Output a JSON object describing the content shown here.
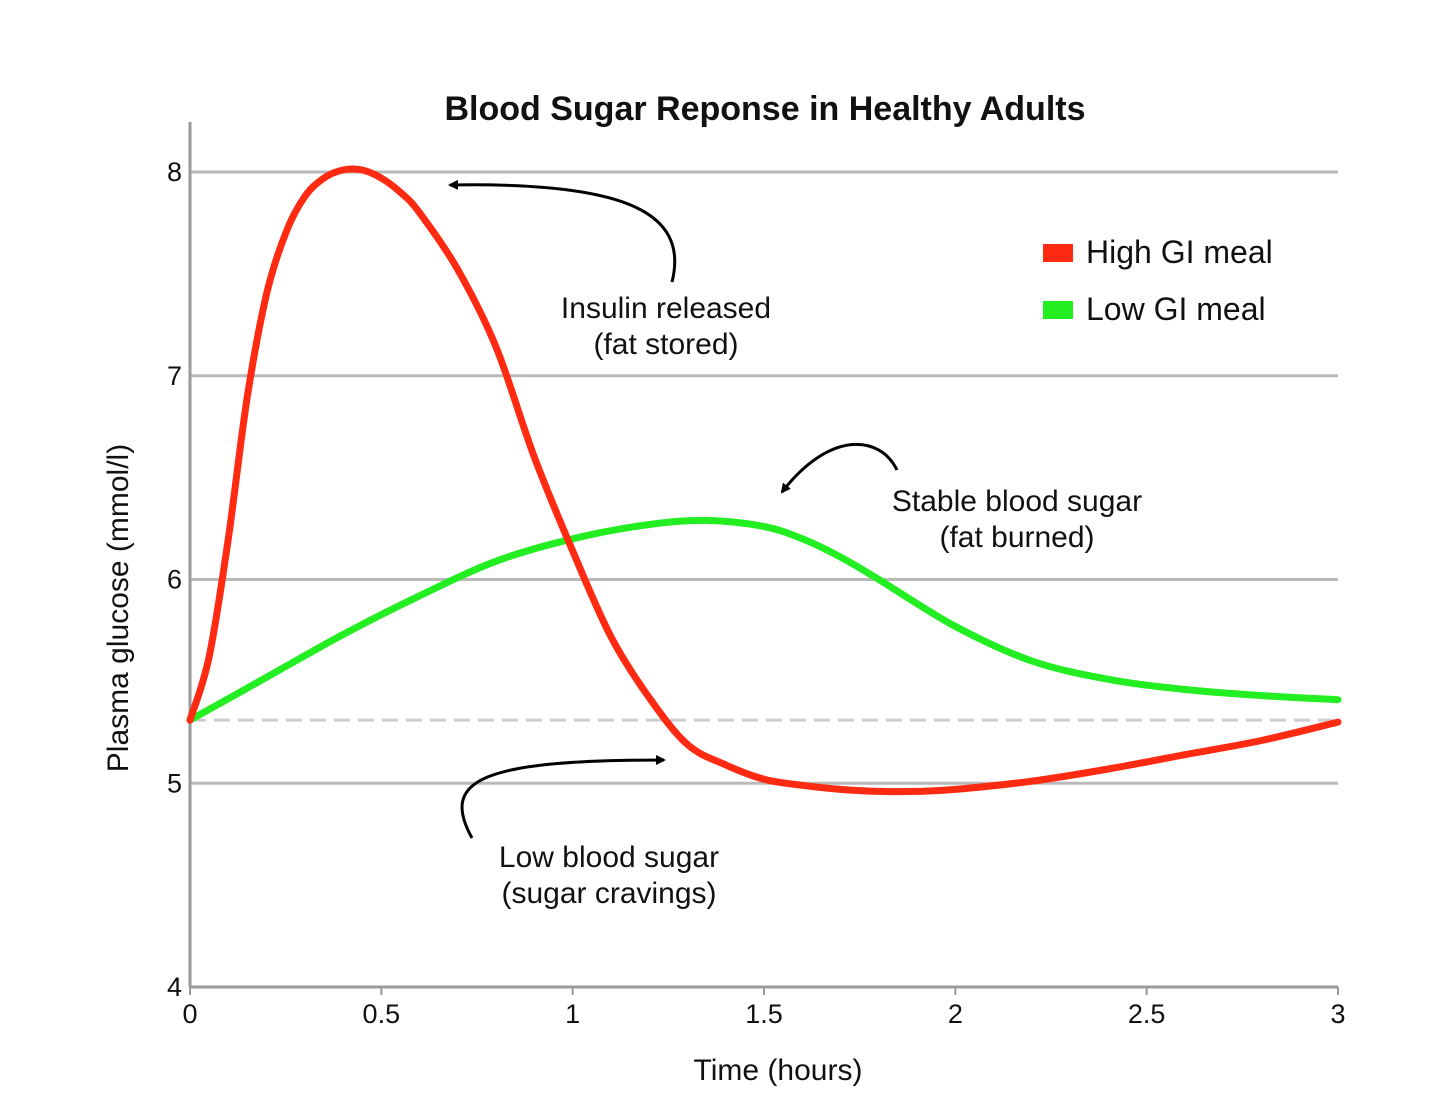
{
  "chart_data": {
    "type": "line",
    "title": "Blood Sugar Reponse in Healthy Adults",
    "xlabel": "Time (hours)",
    "ylabel": "Plasma glucose (mmol/l)",
    "xlim": [
      0,
      3
    ],
    "ylim": [
      4,
      8
    ],
    "x_ticks": [
      0,
      0.5,
      1,
      1.5,
      2,
      2.5,
      3
    ],
    "x_tick_labels": [
      "0",
      "0.5",
      "1",
      "1.5",
      "2",
      "2.5",
      "3"
    ],
    "y_ticks": [
      4,
      5,
      6,
      7,
      8
    ],
    "y_tick_labels": [
      "4",
      "5",
      "6",
      "7",
      "8"
    ],
    "grid": true,
    "baseline": {
      "y": 5.31,
      "style": "dashed"
    },
    "legend": {
      "placement": "top-right"
    },
    "series": [
      {
        "name": "High GI meal",
        "color": "#ff2a12",
        "x": [
          0,
          0.05,
          0.1,
          0.15,
          0.2,
          0.25,
          0.3,
          0.35,
          0.4,
          0.45,
          0.5,
          0.55,
          0.6,
          0.7,
          0.8,
          0.9,
          1.0,
          1.1,
          1.2,
          1.3,
          1.4,
          1.5,
          1.6,
          1.7,
          1.8,
          1.9,
          2.0,
          2.2,
          2.4,
          2.6,
          2.8,
          3.0
        ],
        "values": [
          5.31,
          5.62,
          6.2,
          6.9,
          7.4,
          7.7,
          7.88,
          7.97,
          8.01,
          8.01,
          7.97,
          7.9,
          7.8,
          7.52,
          7.14,
          6.6,
          6.14,
          5.72,
          5.42,
          5.19,
          5.09,
          5.02,
          4.99,
          4.97,
          4.96,
          4.96,
          4.97,
          5.01,
          5.07,
          5.14,
          5.21,
          5.3
        ]
      },
      {
        "name": "Low GI meal",
        "color": "#22ee22",
        "x": [
          0,
          0.2,
          0.4,
          0.6,
          0.8,
          1.0,
          1.2,
          1.35,
          1.5,
          1.6,
          1.7,
          1.8,
          2.0,
          2.2,
          2.4,
          2.6,
          2.8,
          3.0
        ],
        "values": [
          5.31,
          5.52,
          5.73,
          5.92,
          6.09,
          6.2,
          6.27,
          6.29,
          6.26,
          6.2,
          6.11,
          6.0,
          5.77,
          5.6,
          5.51,
          5.46,
          5.43,
          5.41
        ]
      }
    ],
    "annotations": [
      {
        "lines": [
          "Insulin released",
          "(fat stored)"
        ],
        "points_to": {
          "x": 0.65,
          "y": 7.95
        }
      },
      {
        "lines": [
          "Stable blood sugar",
          "(fat burned)"
        ],
        "points_to": {
          "x": 1.52,
          "y": 6.4
        }
      },
      {
        "lines": [
          "Low blood sugar",
          "(sugar cravings)"
        ],
        "points_to": {
          "x": 1.27,
          "y": 5.12
        }
      }
    ]
  }
}
